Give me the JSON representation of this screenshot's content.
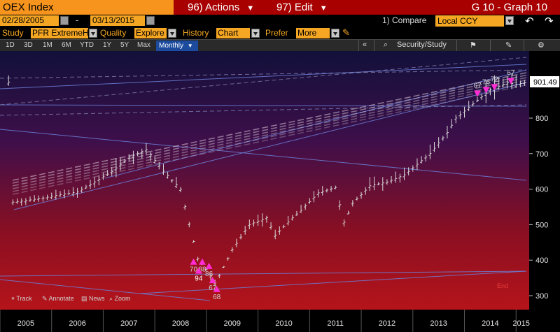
{
  "header": {
    "ticker": "OEX Index",
    "actions_label": "96) Actions",
    "edit_label": "97) Edit",
    "graph_title": "G 10 - Graph 10"
  },
  "range": {
    "start_date": "02/28/2005",
    "end_date": "03/13/2015",
    "separator": "-"
  },
  "compare": {
    "number": "1)",
    "label": "Compare",
    "currency": "Local CCY"
  },
  "study_bar": {
    "study_label": "Study",
    "study_value": "PFR ExtremeH",
    "quality_label": "Quality",
    "quality_value": "Explore",
    "history_label": "History",
    "history_value": "Chart",
    "prefer_label": "Prefer",
    "prefer_value": "More"
  },
  "periods": [
    "1D",
    "3D",
    "1M",
    "6M",
    "YTD",
    "1Y",
    "5Y",
    "Max"
  ],
  "frequency": "Monthly",
  "toolbar": {
    "collapse": "«",
    "security_study": "Security/Study"
  },
  "bottom_tools": {
    "track": "Track",
    "annotate": "Annotate",
    "news": "News",
    "zoom": "Zoom"
  },
  "chart_data": {
    "type": "candlestick",
    "last_price": "901.49",
    "end_marker": "End",
    "y_ticks": [
      300,
      400,
      500,
      600,
      700,
      800
    ],
    "ylim": [
      280,
      960
    ],
    "x_labels": [
      "2005",
      "2006",
      "2007",
      "2008",
      "2009",
      "2010",
      "2011",
      "2012",
      "2013",
      "2014",
      "2015"
    ],
    "monthly_close": [
      [
        2005.17,
        562
      ],
      [
        2005.5,
        568
      ],
      [
        2005.83,
        575
      ],
      [
        2006.17,
        585
      ],
      [
        2006.5,
        592
      ],
      [
        2006.83,
        620
      ],
      [
        2007.17,
        650
      ],
      [
        2007.5,
        690
      ],
      [
        2007.83,
        712
      ],
      [
        2008.17,
        650
      ],
      [
        2008.5,
        600
      ],
      [
        2008.67,
        500
      ],
      [
        2008.83,
        405
      ],
      [
        2009.0,
        375
      ],
      [
        2009.17,
        335
      ],
      [
        2009.33,
        380
      ],
      [
        2009.5,
        430
      ],
      [
        2009.83,
        500
      ],
      [
        2010.17,
        520
      ],
      [
        2010.33,
        470
      ],
      [
        2010.67,
        520
      ],
      [
        2010.83,
        540
      ],
      [
        2011.17,
        590
      ],
      [
        2011.5,
        605
      ],
      [
        2011.67,
        505
      ],
      [
        2011.83,
        560
      ],
      [
        2012.17,
        610
      ],
      [
        2012.5,
        620
      ],
      [
        2012.83,
        640
      ],
      [
        2013.0,
        660
      ],
      [
        2013.33,
        700
      ],
      [
        2013.67,
        760
      ],
      [
        2013.83,
        800
      ],
      [
        2014.0,
        820
      ],
      [
        2014.33,
        860
      ],
      [
        2014.5,
        880
      ],
      [
        2014.67,
        890
      ],
      [
        2014.83,
        900
      ],
      [
        2015.0,
        895
      ],
      [
        2015.2,
        901.49
      ]
    ],
    "signals": [
      {
        "x": 2008.75,
        "y": 395,
        "dir": "up",
        "label": "70"
      },
      {
        "x": 2008.92,
        "y": 395,
        "dir": "up",
        "label": "88"
      },
      {
        "x": 2008.85,
        "y": 370,
        "dir": "up",
        "label": "94"
      },
      {
        "x": 2009.05,
        "y": 383,
        "dir": "up",
        "label": "86"
      },
      {
        "x": 2009.12,
        "y": 343,
        "dir": "up",
        "label": "67"
      },
      {
        "x": 2009.2,
        "y": 318,
        "dir": "up",
        "label": "68"
      },
      {
        "x": 2014.25,
        "y": 870,
        "dir": "down",
        "label": "67"
      },
      {
        "x": 2014.42,
        "y": 880,
        "dir": "down",
        "label": "76"
      },
      {
        "x": 2014.58,
        "y": 888,
        "dir": "down",
        "label": "72"
      },
      {
        "x": 2014.9,
        "y": 905,
        "dir": "down",
        "label": "67"
      }
    ]
  }
}
